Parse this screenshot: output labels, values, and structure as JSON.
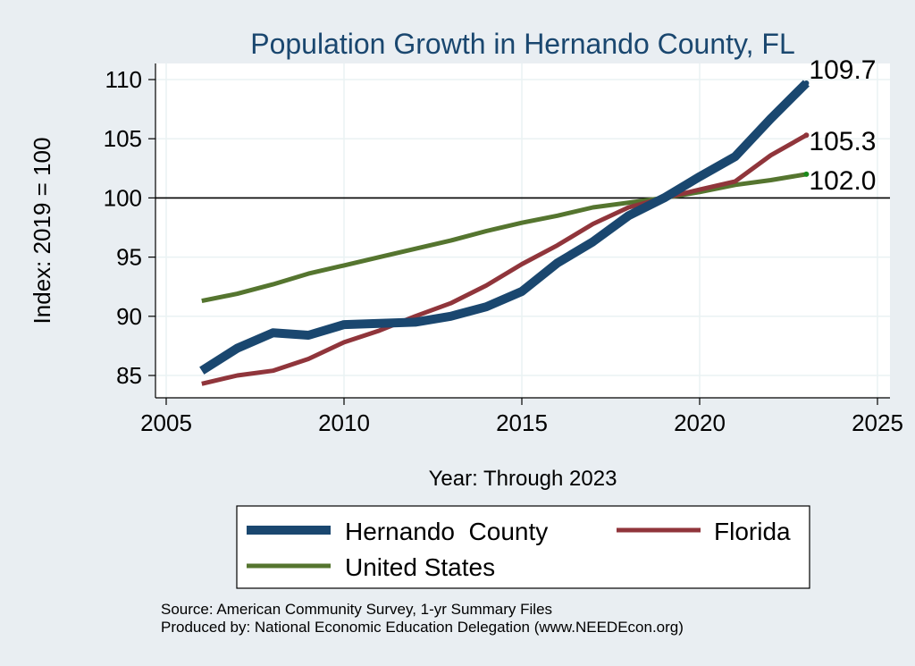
{
  "chart_data": {
    "type": "line",
    "title": "Population Growth in Hernando County, FL",
    "xlabel": "Year: Through 2023",
    "ylabel": "Index: 2019 = 100",
    "xlim": [
      2005,
      2025
    ],
    "ylim": [
      83,
      111
    ],
    "xticks": [
      2005,
      2010,
      2015,
      2020,
      2025
    ],
    "yticks": [
      85,
      90,
      95,
      100,
      105,
      110
    ],
    "reference_line": 100,
    "grid": true,
    "legend_position": "bottom",
    "x": [
      2006,
      2007,
      2008,
      2009,
      2010,
      2011,
      2012,
      2013,
      2014,
      2015,
      2016,
      2017,
      2018,
      2019,
      2020,
      2021,
      2022,
      2023
    ],
    "series": [
      {
        "name": "Hernando  County",
        "color": "#1a476f",
        "values": [
          85.4,
          87.3,
          88.6,
          88.4,
          89.3,
          89.4,
          89.5,
          90.0,
          90.8,
          92.1,
          94.5,
          96.3,
          98.5,
          100.0,
          101.8,
          103.5,
          106.7,
          109.7
        ],
        "end_label": "109.7"
      },
      {
        "name": "Florida",
        "color": "#90353b",
        "values": [
          84.3,
          85.0,
          85.4,
          86.4,
          87.8,
          88.8,
          90.0,
          91.1,
          92.6,
          94.4,
          96.0,
          97.8,
          99.2,
          100.0,
          100.7,
          101.4,
          103.6,
          105.3
        ],
        "end_label": "105.3"
      },
      {
        "name": "United States",
        "color": "#55752f",
        "values": [
          91.3,
          91.9,
          92.7,
          93.6,
          94.3,
          95.0,
          95.7,
          96.4,
          97.2,
          97.9,
          98.5,
          99.2,
          99.6,
          100.0,
          100.5,
          101.1,
          101.5,
          102.0
        ],
        "end_label": "102.0"
      }
    ],
    "source_lines": [
      "Source: American Community Survey, 1-yr Summary Files",
      "Produced by: National Economic Education Delegation (www.NEEDEcon.org)"
    ]
  }
}
